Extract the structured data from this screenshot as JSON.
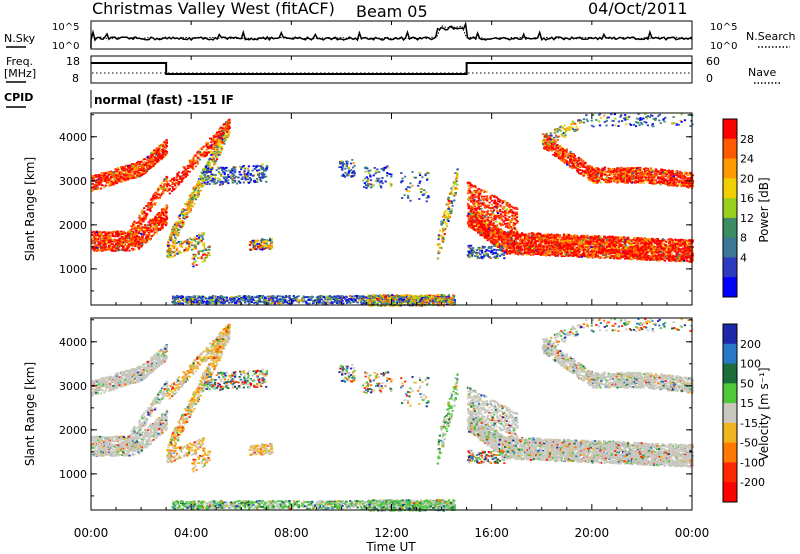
{
  "header": {
    "title": "Christmas Valley West (fitACF)",
    "beam": "Beam 05",
    "date": "04/Oct/2011"
  },
  "status_panels": {
    "nsky_label": "N.Sky",
    "nsearch_label": "N.Search",
    "freq_label_line1": "Freq.",
    "freq_label_line2": "[MHz]",
    "nave_label": "Nave",
    "cpid_label": "CPID",
    "cpid_text": "normal (fast) -151 IF",
    "noise_ticks": [
      "10^5",
      "10^0"
    ],
    "noise_ticks_right": [
      "10^5",
      "10^0"
    ],
    "freq_ticks": [
      "18",
      "8"
    ],
    "nave_ticks": [
      "60",
      "0"
    ],
    "freq_steps": [
      {
        "t_hr": 0,
        "val": 1
      },
      {
        "t_hr": 3.0,
        "val": 0
      },
      {
        "t_hr": 15.0,
        "val": 1
      },
      {
        "t_hr": 24,
        "val": 1
      }
    ]
  },
  "chart_data": [
    {
      "type": "heatmap",
      "name": "power",
      "ylabel": "Slant Range [km]",
      "yticks": [
        "4000",
        "3000",
        "2000",
        "1000"
      ],
      "ytick_values": [
        4000,
        3000,
        2000,
        1000
      ],
      "ylim": [
        180,
        4540
      ],
      "xlim_hr": [
        0,
        24
      ],
      "colorbar_label": "Power [dB]",
      "colorbar_ticks": [
        "28",
        "24",
        "20",
        "16",
        "12",
        "8",
        "4"
      ],
      "colorbar_colors": [
        "#ff0000",
        "#ff5a00",
        "#ff9a00",
        "#f0d000",
        "#98d020",
        "#3c8c64",
        "#3c7896",
        "#2d3cbe",
        "#0000ff"
      ],
      "colorbar_colors_order": "top-to-bottom"
    },
    {
      "type": "heatmap",
      "name": "velocity",
      "ylabel": "Slant Range [km]",
      "yticks": [
        "4000",
        "3000",
        "2000",
        "1000"
      ],
      "ytick_values": [
        4000,
        3000,
        2000,
        1000
      ],
      "ylim": [
        180,
        4540
      ],
      "xlim_hr": [
        0,
        24
      ],
      "colorbar_label": "Velocity [m s⁻¹]",
      "colorbar_ticks": [
        "200",
        "100",
        "50",
        "15",
        "-15",
        "-50",
        "-100",
        "-200"
      ],
      "colorbar_colors": [
        "#1e28aa",
        "#2878c8",
        "#1e6e3c",
        "#50c83c",
        "#c8c8c0",
        "#f0b41e",
        "#ff7800",
        "#ff2800",
        "#ff0000"
      ],
      "colorbar_colors_order": "top-to-bottom"
    }
  ],
  "x_axis": {
    "label": "Time UT",
    "ticks": [
      "00:00",
      "04:00",
      "08:00",
      "12:00",
      "16:00",
      "20:00",
      "00:00"
    ],
    "tick_hours": [
      0,
      4,
      8,
      12,
      16,
      20,
      24
    ]
  }
}
